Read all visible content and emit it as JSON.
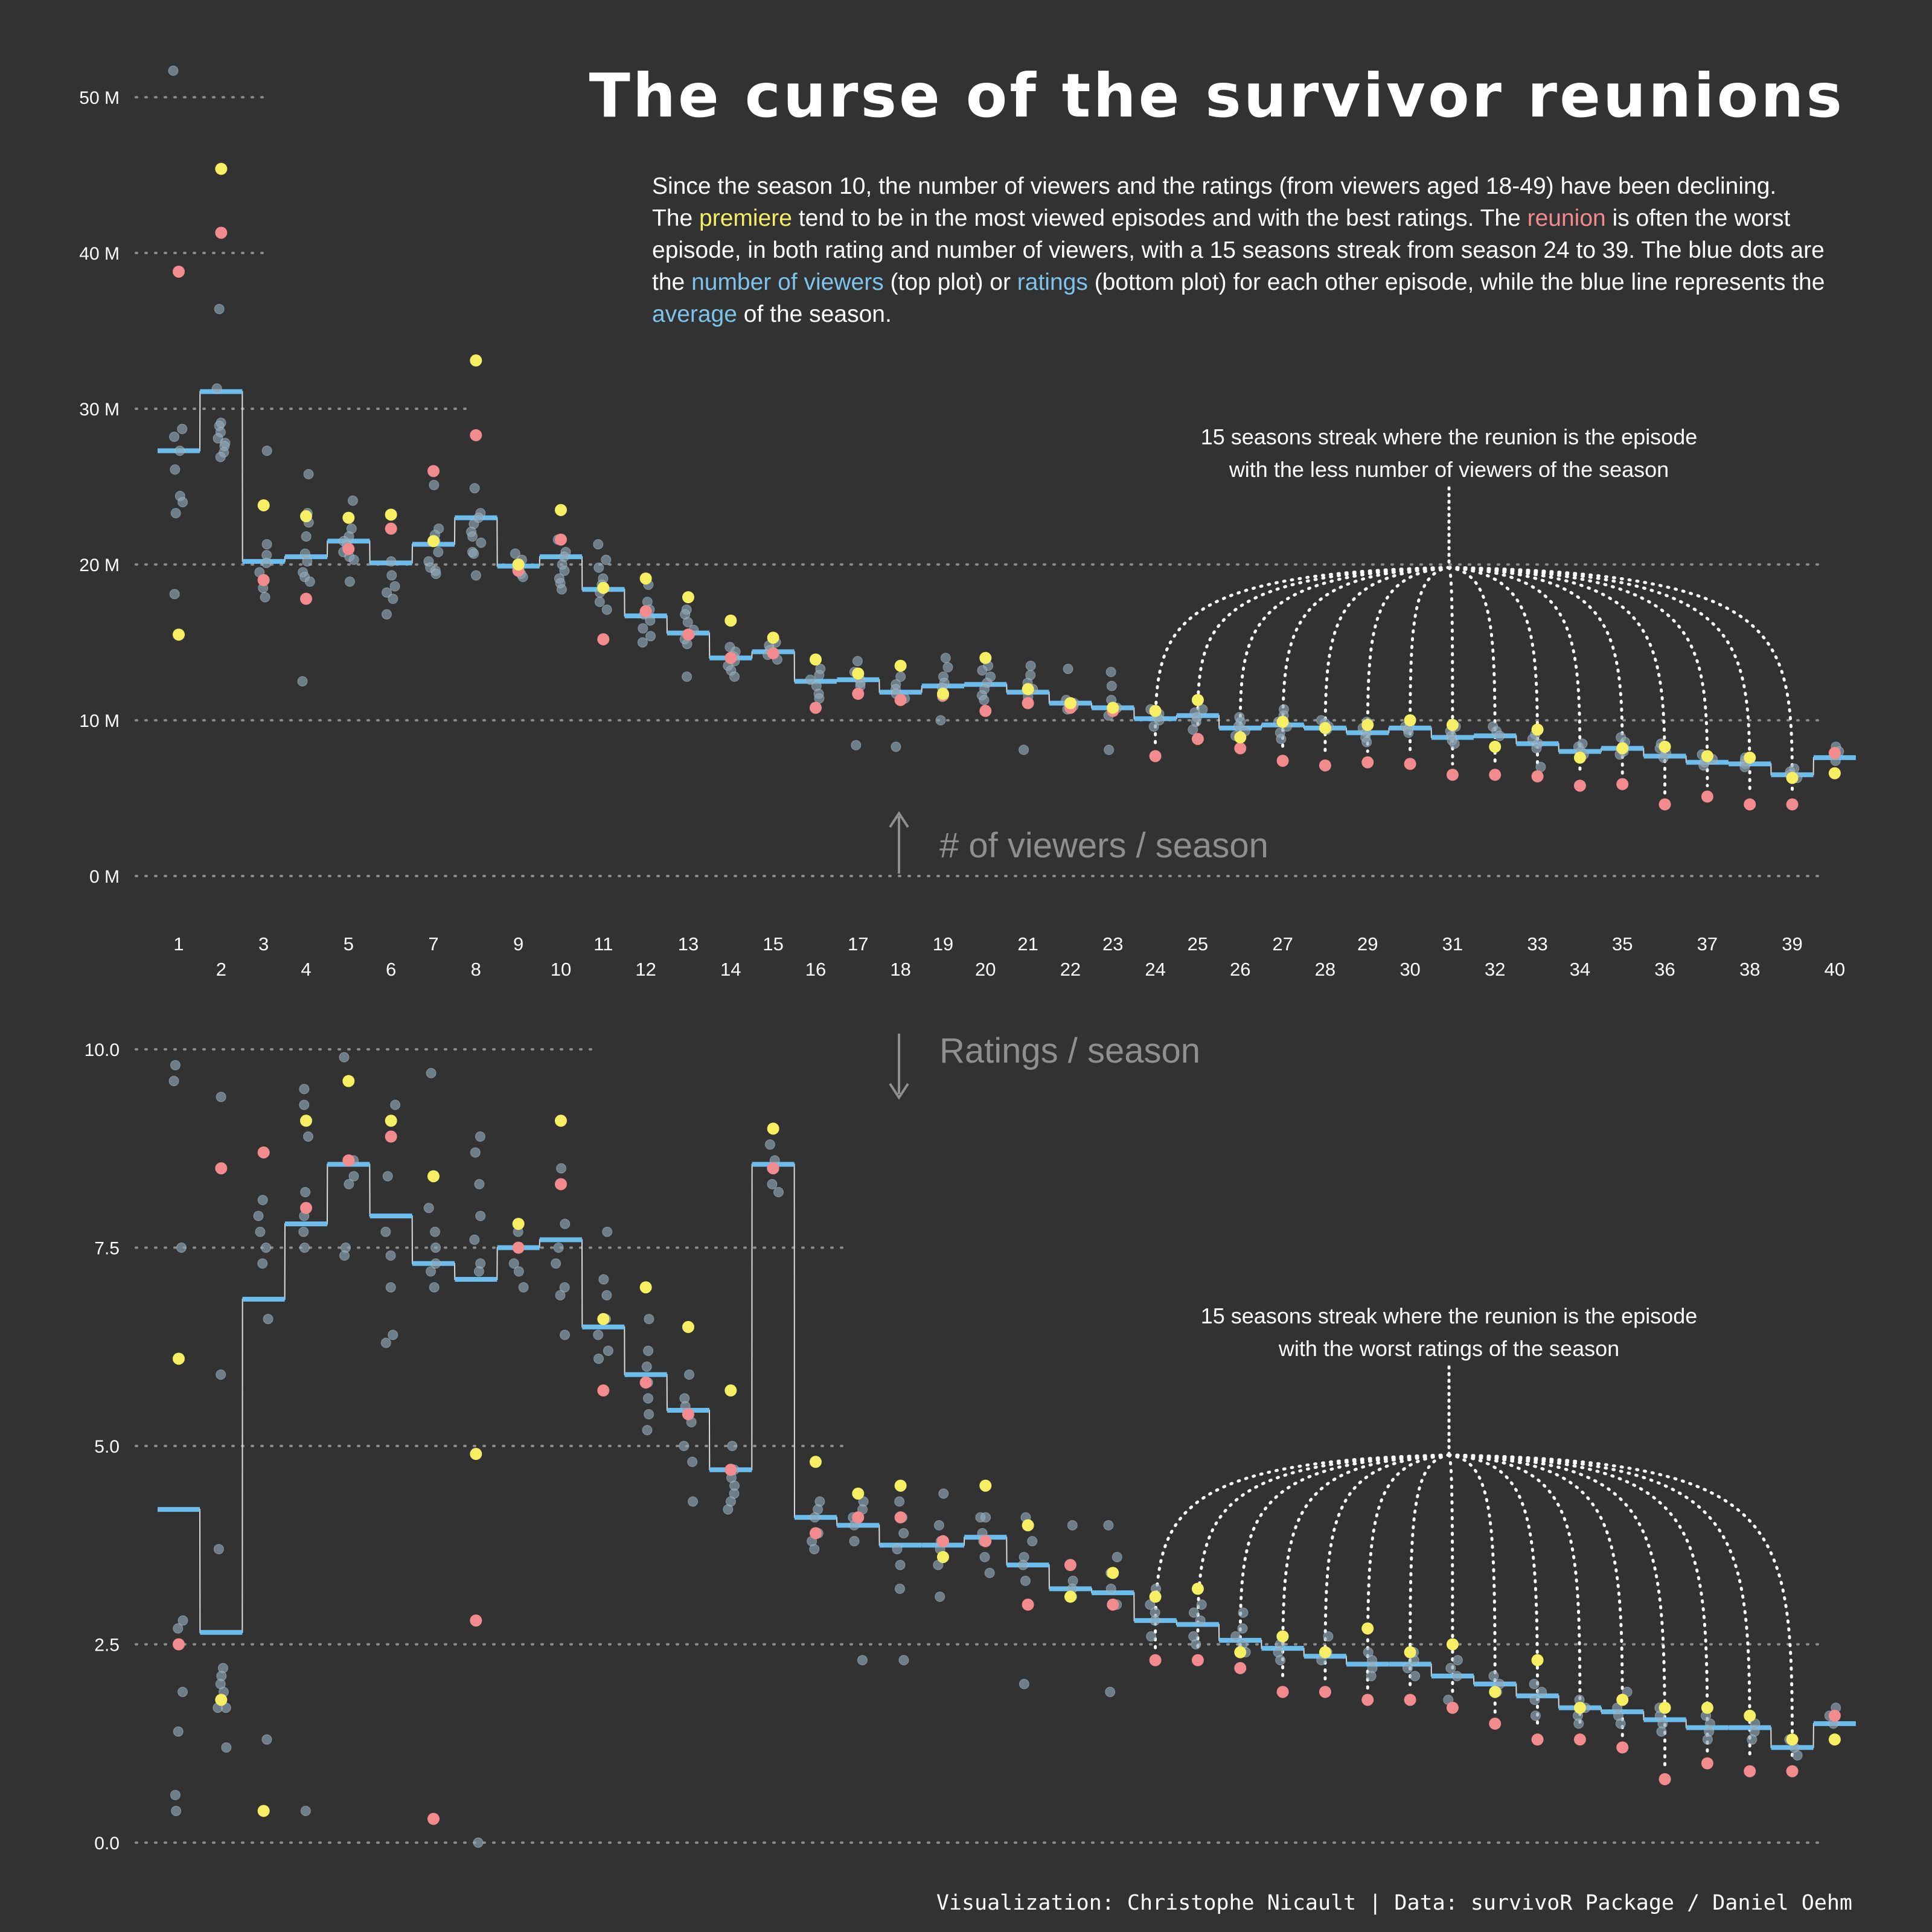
{
  "title": "The curse of the survivor reunions",
  "intro": {
    "p1": "Since the season 10, the number of viewers and the ratings (from viewers aged 18-49) have been declining.",
    "p2a": "The ",
    "premiere": "premiere",
    "p2b": " tend to be in the most viewed episodes and with the best ratings. The ",
    "reunion": "reunion",
    "p2c": " is often the worst episode, in both rating and number of viewers, with a 15 seasons streak from season 24 to 39. The blue dots are the ",
    "viewers": "number of viewers",
    "p2d": " (top plot) or ",
    "ratings": "ratings",
    "p2e": " (bottom plot) for each other episode, while the blue line represents the ",
    "average": "average",
    "p2f": " of the season."
  },
  "credit": "Visualization: Christophe Nicault | Data: survivoR Package / Daniel Oehm",
  "colors": {
    "background": "#323232",
    "premiere": "#f6ef64",
    "reunion": "#f28b8d",
    "episode": "#8fa7b8",
    "average": "#6cbcec",
    "grid": "#8a8a8a",
    "section_label": "#8f8f8f"
  },
  "seasons": [
    "1",
    "2",
    "3",
    "4",
    "5",
    "6",
    "7",
    "8",
    "9",
    "10",
    "11",
    "12",
    "13",
    "14",
    "15",
    "16",
    "17",
    "18",
    "19",
    "20",
    "21",
    "22",
    "23",
    "24",
    "25",
    "26",
    "27",
    "28",
    "29",
    "30",
    "31",
    "32",
    "33",
    "34",
    "35",
    "36",
    "37",
    "38",
    "39",
    "40"
  ],
  "chart_data": [
    {
      "type": "scatter",
      "panel": "viewers",
      "section_label": "# of viewers / season",
      "ylabel": "",
      "xlabel": "",
      "ylim": [
        0,
        52
      ],
      "yticks": [
        0,
        10,
        20,
        30,
        40,
        50
      ],
      "ytick_labels": [
        "0 M",
        "10 M",
        "20 M",
        "30 M",
        "40 M",
        "50 M"
      ],
      "grid": "dotted horizontal",
      "annotation": {
        "line1": "15 seasons streak where the reunion is the episode",
        "line2": "with the less number of viewers of the season",
        "seasons_from": 24,
        "seasons_to": 39
      },
      "premiere": [
        15.5,
        45.4,
        23.8,
        23.1,
        23.0,
        23.2,
        21.5,
        33.1,
        20.0,
        23.5,
        18.5,
        19.1,
        17.9,
        16.4,
        15.3,
        13.9,
        13.0,
        13.5,
        11.7,
        14.0,
        12.0,
        11.1,
        10.8,
        10.6,
        11.3,
        8.9,
        9.9,
        9.5,
        9.7,
        10.0,
        9.7,
        8.3,
        9.4,
        7.6,
        8.2,
        8.3,
        7.7,
        7.6,
        6.3,
        6.6
      ],
      "reunion": [
        38.8,
        41.3,
        19.0,
        17.8,
        21.0,
        22.3,
        26.0,
        28.3,
        19.6,
        21.6,
        15.2,
        17.0,
        15.5,
        14.0,
        14.3,
        10.8,
        11.7,
        11.3,
        11.6,
        10.6,
        11.1,
        10.8,
        10.6,
        7.7,
        8.8,
        8.2,
        7.4,
        7.1,
        7.3,
        7.2,
        6.5,
        6.5,
        6.4,
        5.8,
        5.9,
        4.6,
        5.1,
        4.6,
        4.6,
        7.9
      ],
      "average": [
        27.3,
        31.1,
        20.2,
        20.5,
        21.5,
        20.1,
        21.3,
        23.0,
        19.9,
        20.5,
        18.4,
        16.7,
        15.6,
        14.0,
        14.4,
        12.5,
        12.6,
        11.8,
        12.2,
        12.3,
        11.8,
        11.1,
        10.8,
        10.1,
        10.3,
        9.5,
        9.7,
        9.5,
        9.2,
        9.5,
        8.9,
        9.0,
        8.5,
        8.0,
        8.2,
        7.7,
        7.3,
        7.2,
        6.5,
        7.6
      ],
      "episodes": [
        [
          51.7,
          28.7,
          28.2,
          27.3,
          26.1,
          24.4,
          24.0,
          23.3,
          18.1
        ],
        [
          36.4,
          31.3,
          29.1,
          28.9,
          28.5,
          28.1,
          27.8,
          27.6,
          27.2,
          26.9
        ],
        [
          27.3,
          21.3,
          20.6,
          20.1,
          19.5,
          19.0,
          18.5,
          17.9
        ],
        [
          25.8,
          23.3,
          22.7,
          21.8,
          20.7,
          20.2,
          19.5,
          19.2,
          18.9,
          12.5
        ],
        [
          24.1,
          22.3,
          21.8,
          21.5,
          21.2,
          20.8,
          20.5,
          20.3,
          18.9
        ],
        [
          20.2,
          19.3,
          18.6,
          18.2,
          17.8,
          16.8
        ],
        [
          25.1,
          22.3,
          21.9,
          21.5,
          20.8,
          20.2,
          19.8,
          19.6,
          19.4
        ],
        [
          24.9,
          23.3,
          23.0,
          22.6,
          22.1,
          21.8,
          21.4,
          20.8,
          20.7,
          19.3
        ],
        [
          20.7,
          20.3,
          20.0,
          19.7,
          19.4,
          19.2
        ],
        [
          21.6,
          20.8,
          20.5,
          20.0,
          19.6,
          19.1,
          18.8,
          18.4
        ],
        [
          21.3,
          20.3,
          19.8,
          19.1,
          18.7,
          18.2,
          17.6,
          17.1
        ],
        [
          18.7,
          17.6,
          17.1,
          16.8,
          16.4,
          15.9,
          15.4,
          15.0
        ],
        [
          17.1,
          16.8,
          16.3,
          15.8,
          15.5,
          15.2,
          14.9,
          12.8
        ],
        [
          14.7,
          14.4,
          14.1,
          13.8,
          13.5,
          13.2,
          12.8
        ],
        [
          15.0,
          14.8,
          14.5,
          14.2,
          13.9
        ],
        [
          13.3,
          12.9,
          12.6,
          12.2,
          11.7,
          11.4
        ],
        [
          13.8,
          13.1,
          12.7,
          12.4,
          12.2,
          8.4
        ],
        [
          12.8,
          12.3,
          12.0,
          11.7,
          11.4,
          8.3
        ],
        [
          14.0,
          13.4,
          12.8,
          12.4,
          12.1,
          11.8,
          11.5,
          10.0
        ],
        [
          13.5,
          13.2,
          12.8,
          12.4,
          12.0,
          11.6,
          11.3
        ],
        [
          13.5,
          12.9,
          12.4,
          12.0,
          11.5,
          8.1
        ],
        [
          13.3,
          11.3,
          11.1,
          10.9,
          10.7
        ],
        [
          13.1,
          12.2,
          11.3,
          10.8,
          10.3,
          8.1
        ],
        [
          10.7,
          10.4,
          10.2,
          10.0,
          9.6
        ],
        [
          10.7,
          10.5,
          10.2,
          9.9,
          9.4
        ],
        [
          10.2,
          9.9,
          9.6,
          9.3,
          9.0
        ],
        [
          10.7,
          10.3,
          9.9,
          9.6,
          9.2,
          8.8
        ],
        [
          10.0,
          9.8,
          9.6,
          9.4
        ],
        [
          9.9,
          9.5,
          9.2,
          8.9,
          8.6
        ],
        [
          9.8,
          9.6,
          9.4,
          9.2
        ],
        [
          9.6,
          9.3,
          9.0,
          8.7,
          8.5
        ],
        [
          9.6,
          9.3,
          9.0
        ],
        [
          9.1,
          8.8,
          8.5,
          8.2,
          7.0
        ],
        [
          8.5,
          8.3,
          8.0,
          7.8
        ],
        [
          8.9,
          8.6,
          8.3,
          8.0,
          7.8
        ],
        [
          8.5,
          8.2,
          7.9,
          7.6
        ],
        [
          7.8,
          7.5,
          7.3,
          7.1
        ],
        [
          7.6,
          7.4,
          7.2,
          7.0
        ],
        [
          6.9,
          6.7,
          6.5,
          6.3
        ],
        [
          8.3,
          8.0,
          7.8,
          7.4
        ]
      ]
    },
    {
      "type": "scatter",
      "panel": "ratings",
      "section_label": "Ratings / season",
      "ylabel": "",
      "xlabel": "",
      "ylim": [
        0,
        10
      ],
      "yticks": [
        0,
        2.5,
        5,
        7.5,
        10
      ],
      "ytick_labels": [
        "0.0",
        "2.5",
        "5.0",
        "7.5",
        "10.0"
      ],
      "grid": "dotted horizontal",
      "annotation": {
        "line1": "15 seasons streak where the reunion is the episode",
        "line2": "with the worst ratings of the season",
        "seasons_from": 24,
        "seasons_to": 39
      },
      "premiere": [
        6.1,
        1.8,
        0.4,
        9.1,
        9.6,
        9.1,
        8.4,
        4.9,
        7.8,
        9.1,
        6.6,
        7.0,
        6.5,
        5.7,
        9.0,
        4.8,
        4.4,
        4.5,
        3.6,
        4.5,
        4.0,
        3.1,
        3.4,
        3.1,
        3.2,
        2.4,
        2.6,
        2.4,
        2.7,
        2.4,
        2.5,
        1.9,
        2.3,
        1.7,
        1.8,
        1.7,
        1.7,
        1.6,
        1.3,
        1.3
      ],
      "reunion": [
        2.5,
        8.5,
        8.7,
        8.0,
        8.6,
        8.9,
        0.3,
        2.8,
        7.5,
        8.3,
        5.7,
        5.8,
        5.4,
        4.7,
        8.5,
        3.9,
        4.1,
        4.1,
        3.8,
        3.8,
        3.0,
        3.5,
        3.0,
        2.3,
        2.3,
        2.2,
        1.9,
        1.9,
        1.8,
        1.8,
        1.7,
        1.5,
        1.3,
        1.3,
        1.2,
        0.8,
        1.0,
        0.9,
        0.9,
        1.6
      ],
      "average": [
        4.2,
        2.65,
        6.85,
        7.8,
        8.55,
        7.9,
        7.3,
        7.1,
        7.5,
        7.6,
        6.5,
        5.9,
        5.45,
        4.7,
        8.55,
        4.1,
        4.0,
        3.75,
        3.75,
        3.85,
        3.5,
        3.2,
        3.15,
        2.8,
        2.75,
        2.55,
        2.45,
        2.35,
        2.25,
        2.25,
        2.1,
        2.0,
        1.85,
        1.7,
        1.65,
        1.55,
        1.45,
        1.45,
        1.2,
        1.5
      ],
      "episodes": [
        [
          9.8,
          9.6,
          7.5,
          2.8,
          2.7,
          1.9,
          1.4,
          0.6,
          0.4
        ],
        [
          9.4,
          5.9,
          3.7,
          2.2,
          2.1,
          2.0,
          1.9,
          1.7,
          1.7,
          1.2
        ],
        [
          8.1,
          7.9,
          7.7,
          7.5,
          7.3,
          6.6,
          1.3
        ],
        [
          9.5,
          9.3,
          8.9,
          8.2,
          7.9,
          7.7,
          7.5,
          0.4
        ],
        [
          9.9,
          8.6,
          8.4,
          8.3,
          7.5,
          7.4
        ],
        [
          9.3,
          8.4,
          7.7,
          7.4,
          7.0,
          6.4,
          6.3
        ],
        [
          9.7,
          8.0,
          7.7,
          7.5,
          7.3,
          7.2,
          7.0
        ],
        [
          8.9,
          8.7,
          8.3,
          7.9,
          7.6,
          7.3,
          7.2,
          0.0
        ],
        [
          7.7,
          7.5,
          7.3,
          7.2,
          7.0
        ],
        [
          8.5,
          7.8,
          7.5,
          7.3,
          7.0,
          6.9,
          6.4
        ],
        [
          7.7,
          7.1,
          6.9,
          6.6,
          6.4,
          6.2,
          6.1
        ],
        [
          6.6,
          6.2,
          6.0,
          5.8,
          5.6,
          5.4,
          5.2
        ],
        [
          5.9,
          5.6,
          5.5,
          5.3,
          5.0,
          4.8,
          4.3
        ],
        [
          5.0,
          4.7,
          4.6,
          4.5,
          4.4,
          4.3,
          4.2
        ],
        [
          8.8,
          8.6,
          8.5,
          8.3,
          8.2
        ],
        [
          4.3,
          4.2,
          4.1,
          3.9,
          3.8,
          3.7
        ],
        [
          4.3,
          4.2,
          4.1,
          4.0,
          3.8,
          2.3
        ],
        [
          4.3,
          4.1,
          3.9,
          3.7,
          3.5,
          3.2,
          2.3
        ],
        [
          4.4,
          4.0,
          3.8,
          3.7,
          3.5,
          3.1
        ],
        [
          4.1,
          4.1,
          3.9,
          3.8,
          3.6,
          3.4
        ],
        [
          4.1,
          3.8,
          3.6,
          3.5,
          3.3,
          2.0
        ],
        [
          4.0,
          3.3,
          3.2,
          3.1
        ],
        [
          4.0,
          3.6,
          3.4,
          3.2,
          3.0,
          1.9
        ],
        [
          3.2,
          3.0,
          2.9,
          2.8,
          2.6
        ],
        [
          3.0,
          2.9,
          2.8,
          2.6,
          2.5
        ],
        [
          2.9,
          2.7,
          2.6,
          2.5,
          2.4
        ],
        [
          2.6,
          2.5,
          2.4,
          2.3
        ],
        [
          2.6,
          2.4,
          2.3
        ],
        [
          2.4,
          2.3,
          2.2,
          2.1
        ],
        [
          2.4,
          2.3,
          2.2,
          2.1
        ],
        [
          2.3,
          2.2,
          2.1,
          1.8
        ],
        [
          2.1,
          2.0,
          1.9
        ],
        [
          2.0,
          1.9,
          1.8,
          1.6
        ],
        [
          1.8,
          1.7,
          1.6,
          1.5
        ],
        [
          1.9,
          1.7,
          1.6,
          1.5
        ],
        [
          1.7,
          1.6,
          1.5,
          1.4
        ],
        [
          1.6,
          1.5,
          1.4,
          1.3
        ],
        [
          1.5,
          1.4,
          1.3
        ],
        [
          1.3,
          1.2,
          1.1
        ],
        [
          1.7,
          1.6,
          1.5
        ]
      ]
    }
  ]
}
